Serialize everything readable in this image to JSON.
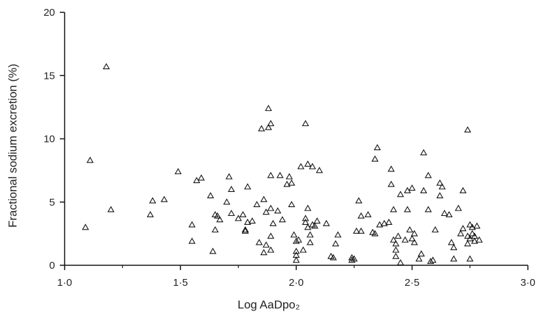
{
  "chart_data": {
    "type": "scatter",
    "title": "",
    "xlabel": "Log AaDpo₂",
    "ylabel": "Fractional sodium excretion (%)",
    "xlim": [
      1.0,
      3.0
    ],
    "ylim": [
      0,
      20
    ],
    "x_ticks": [
      "1·0",
      "1·5",
      "2·0",
      "2·5",
      "3·0"
    ],
    "y_ticks": [
      "0",
      "5",
      "10",
      "15",
      "20"
    ],
    "marker": "open-triangle",
    "grid": false,
    "series": [
      {
        "points": [
          [
            1.09,
            3.0
          ],
          [
            1.11,
            8.3
          ],
          [
            1.18,
            15.7
          ],
          [
            1.2,
            4.4
          ],
          [
            1.37,
            4.0
          ],
          [
            1.38,
            5.1
          ],
          [
            1.43,
            5.2
          ],
          [
            1.49,
            7.4
          ],
          [
            1.55,
            1.9
          ],
          [
            1.55,
            3.2
          ],
          [
            1.57,
            6.7
          ],
          [
            1.59,
            6.9
          ],
          [
            1.63,
            5.5
          ],
          [
            1.64,
            1.1
          ],
          [
            1.65,
            4.0
          ],
          [
            1.65,
            2.8
          ],
          [
            1.66,
            3.9
          ],
          [
            1.67,
            3.6
          ],
          [
            1.7,
            5.0
          ],
          [
            1.71,
            7.0
          ],
          [
            1.72,
            4.1
          ],
          [
            1.72,
            6.0
          ],
          [
            1.75,
            3.7
          ],
          [
            1.77,
            4.0
          ],
          [
            1.78,
            2.8
          ],
          [
            1.78,
            2.7
          ],
          [
            1.79,
            6.2
          ],
          [
            1.79,
            3.4
          ],
          [
            1.81,
            3.5
          ],
          [
            1.83,
            4.8
          ],
          [
            1.84,
            1.8
          ],
          [
            1.85,
            10.8
          ],
          [
            1.86,
            5.2
          ],
          [
            1.86,
            1.0
          ],
          [
            1.87,
            4.2
          ],
          [
            1.87,
            1.6
          ],
          [
            1.88,
            10.9
          ],
          [
            1.88,
            12.4
          ],
          [
            1.89,
            11.2
          ],
          [
            1.89,
            7.1
          ],
          [
            1.89,
            4.5
          ],
          [
            1.89,
            2.3
          ],
          [
            1.89,
            1.2
          ],
          [
            1.9,
            3.3
          ],
          [
            1.92,
            4.3
          ],
          [
            1.93,
            7.1
          ],
          [
            1.94,
            3.6
          ],
          [
            1.96,
            6.4
          ],
          [
            1.97,
            7.0
          ],
          [
            1.98,
            4.8
          ],
          [
            1.98,
            6.5
          ],
          [
            1.99,
            2.4
          ],
          [
            2.0,
            1.1
          ],
          [
            2.0,
            0.8
          ],
          [
            2.0,
            0.4
          ],
          [
            2.0,
            1.9
          ],
          [
            2.01,
            2.0
          ],
          [
            2.02,
            7.8
          ],
          [
            2.03,
            1.2
          ],
          [
            2.04,
            11.2
          ],
          [
            2.04,
            3.4
          ],
          [
            2.04,
            3.7
          ],
          [
            2.05,
            8.0
          ],
          [
            2.05,
            4.5
          ],
          [
            2.05,
            3.0
          ],
          [
            2.06,
            2.4
          ],
          [
            2.06,
            1.8
          ],
          [
            2.07,
            3.2
          ],
          [
            2.07,
            7.8
          ],
          [
            2.08,
            3.1
          ],
          [
            2.09,
            3.5
          ],
          [
            2.1,
            7.5
          ],
          [
            2.13,
            3.3
          ],
          [
            2.15,
            0.7
          ],
          [
            2.16,
            0.6
          ],
          [
            2.17,
            1.7
          ],
          [
            2.18,
            2.4
          ],
          [
            2.24,
            0.6
          ],
          [
            2.24,
            0.4
          ],
          [
            2.25,
            0.5
          ],
          [
            2.26,
            2.7
          ],
          [
            2.27,
            5.1
          ],
          [
            2.28,
            3.9
          ],
          [
            2.28,
            2.7
          ],
          [
            2.31,
            4.0
          ],
          [
            2.33,
            2.6
          ],
          [
            2.34,
            2.5
          ],
          [
            2.34,
            8.4
          ],
          [
            2.35,
            9.3
          ],
          [
            2.36,
            3.2
          ],
          [
            2.38,
            3.3
          ],
          [
            2.4,
            3.4
          ],
          [
            2.41,
            7.6
          ],
          [
            2.41,
            6.4
          ],
          [
            2.42,
            2.0
          ],
          [
            2.42,
            4.4
          ],
          [
            2.43,
            1.2
          ],
          [
            2.43,
            1.7
          ],
          [
            2.43,
            0.7
          ],
          [
            2.44,
            2.3
          ],
          [
            2.45,
            5.6
          ],
          [
            2.45,
            0.2
          ],
          [
            2.47,
            2.0
          ],
          [
            2.48,
            4.4
          ],
          [
            2.48,
            5.9
          ],
          [
            2.49,
            2.8
          ],
          [
            2.5,
            2.1
          ],
          [
            2.5,
            6.1
          ],
          [
            2.51,
            1.8
          ],
          [
            2.51,
            2.5
          ],
          [
            2.53,
            0.5
          ],
          [
            2.54,
            0.9
          ],
          [
            2.55,
            8.9
          ],
          [
            2.55,
            5.9
          ],
          [
            2.57,
            7.1
          ],
          [
            2.57,
            4.4
          ],
          [
            2.58,
            0.3
          ],
          [
            2.59,
            0.4
          ],
          [
            2.6,
            2.8
          ],
          [
            2.62,
            6.5
          ],
          [
            2.62,
            5.5
          ],
          [
            2.63,
            6.2
          ],
          [
            2.64,
            4.1
          ],
          [
            2.66,
            4.0
          ],
          [
            2.67,
            1.8
          ],
          [
            2.68,
            1.4
          ],
          [
            2.68,
            0.5
          ],
          [
            2.7,
            4.5
          ],
          [
            2.71,
            2.5
          ],
          [
            2.72,
            2.9
          ],
          [
            2.72,
            5.9
          ],
          [
            2.74,
            1.7
          ],
          [
            2.74,
            10.7
          ],
          [
            2.74,
            2.3
          ],
          [
            2.75,
            2.1
          ],
          [
            2.75,
            0.5
          ],
          [
            2.75,
            3.2
          ],
          [
            2.76,
            2.5
          ],
          [
            2.76,
            3.0
          ],
          [
            2.77,
            1.9
          ],
          [
            2.77,
            2.3
          ],
          [
            2.78,
            3.1
          ],
          [
            2.79,
            2.0
          ]
        ]
      }
    ]
  }
}
